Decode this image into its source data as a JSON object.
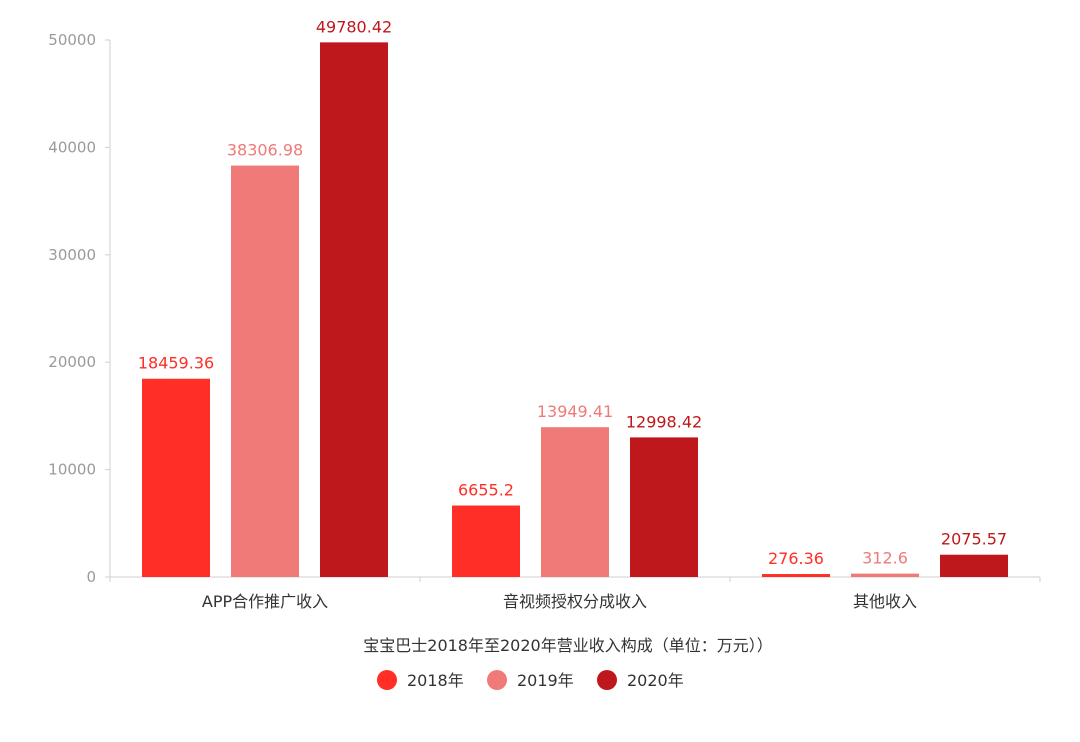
{
  "chart_data": {
    "type": "bar",
    "title": "宝宝巴士2018年至2020年营业收入构成（单位：万元））",
    "xlabel": "",
    "ylabel": "",
    "ylim": [
      0,
      50000
    ],
    "yticks": [
      0,
      10000,
      20000,
      30000,
      40000,
      50000
    ],
    "categories": [
      "APP合作推广收入",
      "音视频授权分成收入",
      "其他收入"
    ],
    "series": [
      {
        "name": "2018年",
        "color": "#ff2e27",
        "values": [
          18459.36,
          6655.2,
          276.36
        ],
        "labels": [
          "18459.36",
          "6655.2",
          "276.36"
        ]
      },
      {
        "name": "2019年",
        "color": "#ef7a78",
        "values": [
          38306.98,
          13949.41,
          312.6
        ],
        "labels": [
          "38306.98",
          "13949.41",
          "312.6"
        ]
      },
      {
        "name": "2020年",
        "color": "#bf181c",
        "values": [
          49780.42,
          12998.42,
          2075.57
        ],
        "labels": [
          "49780.42",
          "12998.42",
          "2075.57"
        ]
      }
    ],
    "legend_position": "bottom-center",
    "grid": false
  }
}
